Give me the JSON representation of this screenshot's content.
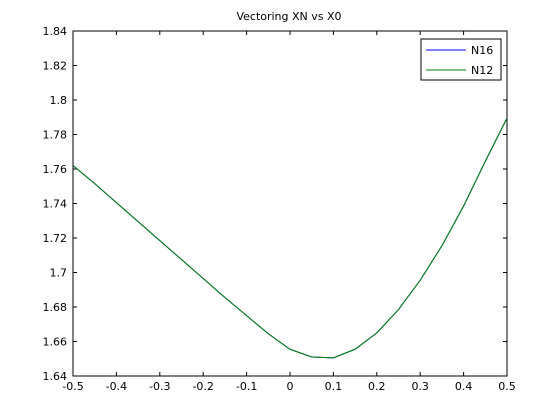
{
  "chart_data": {
    "type": "line",
    "title": "Vectoring XN vs X0",
    "xlabel": "",
    "ylabel": "",
    "xlim": [
      -0.5,
      0.5
    ],
    "ylim": [
      1.64,
      1.84
    ],
    "x_ticks": [
      -0.5,
      -0.4,
      -0.3,
      -0.2,
      -0.1,
      0,
      0.1,
      0.2,
      0.3,
      0.4,
      0.5
    ],
    "y_ticks": [
      1.64,
      1.66,
      1.68,
      1.7,
      1.72,
      1.74,
      1.76,
      1.78,
      1.8,
      1.82,
      1.84
    ],
    "x_tick_labels": [
      "-0.5",
      "-0.4",
      "-0.3",
      "-0.2",
      "-0.1",
      "0",
      "0.1",
      "0.2",
      "0.3",
      "0.4",
      "0.5"
    ],
    "y_tick_labels": [
      "1.64",
      "1.66",
      "1.68",
      "1.7",
      "1.72",
      "1.74",
      "1.76",
      "1.78",
      "1.8",
      "1.82",
      "1.84"
    ],
    "grid": false,
    "legend_position": "top-right",
    "x": [
      -0.5,
      -0.45,
      -0.4,
      -0.35,
      -0.3,
      -0.25,
      -0.2,
      -0.15,
      -0.1,
      -0.05,
      0,
      0.05,
      0.1,
      0.15,
      0.2,
      0.25,
      0.3,
      0.35,
      0.4,
      0.45,
      0.5
    ],
    "series": [
      {
        "name": "N16",
        "color": "#0000ff",
        "values": [
          1.762,
          1.7515,
          1.7405,
          1.7295,
          1.7185,
          1.7075,
          1.6965,
          1.6855,
          1.675,
          1.6645,
          1.6555,
          1.651,
          1.6505,
          1.6555,
          1.665,
          1.6785,
          1.6955,
          1.7155,
          1.7385,
          1.7645,
          1.7895
        ]
      },
      {
        "name": "N12",
        "color": "#008000",
        "values": [
          1.762,
          1.7515,
          1.7405,
          1.7295,
          1.7185,
          1.7075,
          1.6965,
          1.6855,
          1.675,
          1.6645,
          1.6555,
          1.651,
          1.6505,
          1.6555,
          1.665,
          1.6785,
          1.6955,
          1.7155,
          1.7385,
          1.7645,
          1.7895
        ]
      }
    ]
  }
}
